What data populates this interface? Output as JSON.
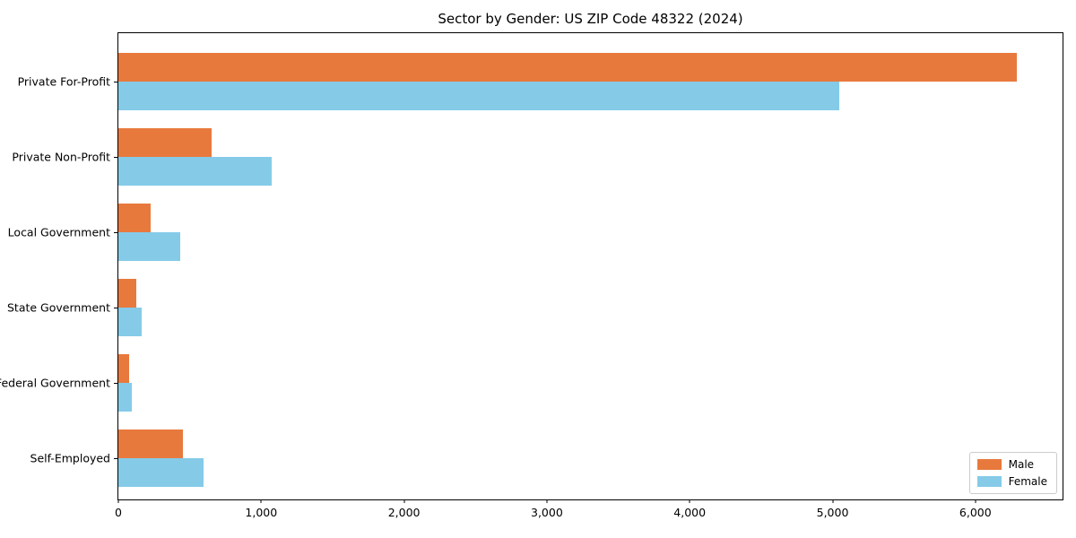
{
  "chart_data": {
    "type": "bar",
    "orientation": "horizontal",
    "title": "Sector by Gender: US ZIP Code 48322 (2024)",
    "categories": [
      "Private For-Profit",
      "Private Non-Profit",
      "Local Government",
      "State Government",
      "Federal Government",
      "Self-Employed"
    ],
    "series": [
      {
        "name": "Male",
        "color": "#e8793d",
        "values": [
          6290,
          650,
          225,
          125,
          78,
          455
        ]
      },
      {
        "name": "Female",
        "color": "#85cbe8",
        "values": [
          5050,
          1075,
          430,
          165,
          95,
          595
        ]
      }
    ],
    "xlabel": "",
    "ylabel": "",
    "xlim": [
      0,
      6610
    ],
    "xticks": {
      "values": [
        0,
        1000,
        2000,
        3000,
        4000,
        5000,
        6000
      ],
      "labels": [
        "0",
        "1,000",
        "2,000",
        "3,000",
        "4,000",
        "5,000",
        "6,000"
      ]
    },
    "grid": false,
    "legend": {
      "position": "lower right"
    },
    "colors": {
      "spine": "#000000",
      "background": "#ffffff"
    }
  }
}
